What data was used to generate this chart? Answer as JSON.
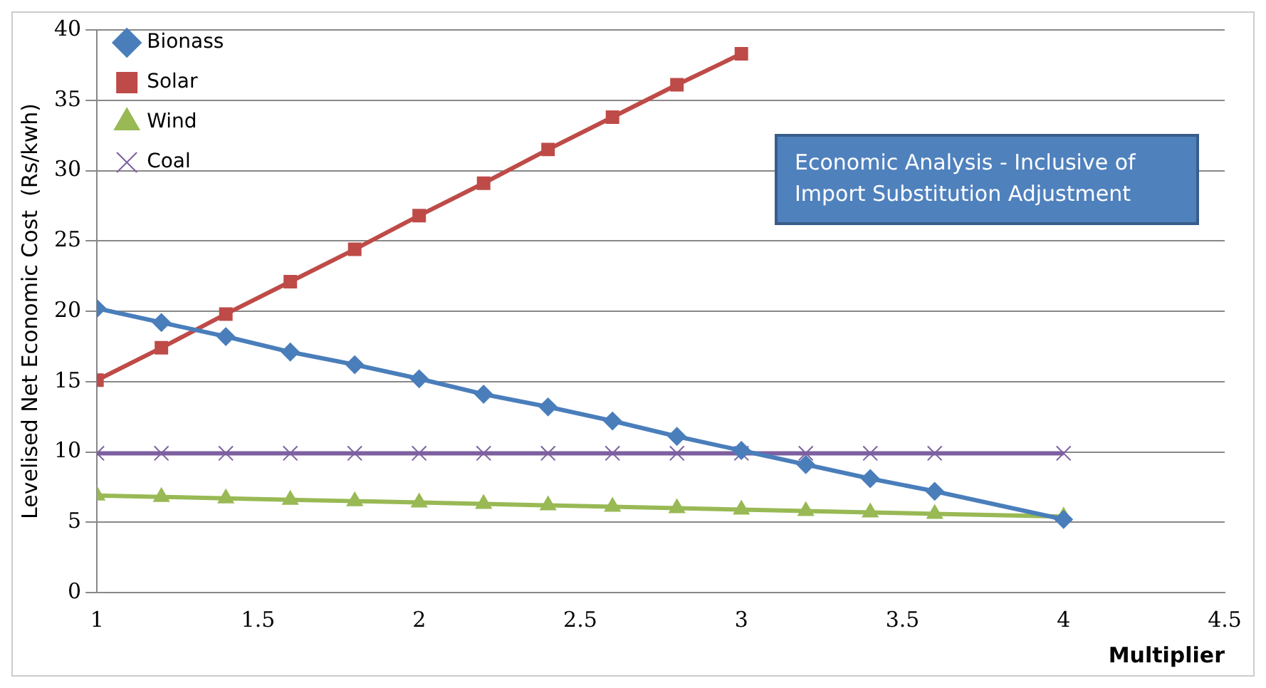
{
  "chart_data": {
    "type": "line",
    "xlabel": "Multiplier",
    "ylabel": "Levelised Net Economic Cost  (Rs/kwh)",
    "x": [
      1,
      1.2,
      1.4,
      1.6,
      1.8,
      2,
      2.2,
      2.4,
      2.6,
      2.8,
      3,
      3.2,
      3.4,
      3.6,
      4
    ],
    "series": [
      {
        "name": "Bionass",
        "color": "#4a7ebb",
        "marker": "diamond",
        "values": [
          20.2,
          19.2,
          18.2,
          17.1,
          16.2,
          15.2,
          14.1,
          13.2,
          12.2,
          11.1,
          10.1,
          9.1,
          8.1,
          7.2,
          5.2
        ]
      },
      {
        "name": "Solar",
        "color": "#be4b48",
        "marker": "square",
        "values": [
          15.1,
          17.4,
          19.8,
          22.1,
          24.4,
          26.8,
          29.1,
          31.5,
          33.8,
          36.1,
          38.3,
          null,
          null,
          null,
          null
        ]
      },
      {
        "name": "Wind",
        "color": "#98b954",
        "marker": "triangle",
        "values": [
          6.9,
          6.8,
          6.7,
          6.6,
          6.5,
          6.4,
          6.3,
          6.2,
          6.1,
          6.0,
          5.9,
          5.8,
          5.7,
          5.6,
          5.4
        ]
      },
      {
        "name": "Coal",
        "color": "#7d60a0",
        "marker": "cross",
        "values": [
          9.9,
          9.9,
          9.9,
          9.9,
          9.9,
          9.9,
          9.9,
          9.9,
          9.9,
          9.9,
          9.9,
          9.9,
          9.9,
          9.9,
          9.9
        ]
      }
    ],
    "xlim": [
      1,
      4.5
    ],
    "xticks": [
      1,
      1.5,
      2,
      2.5,
      3,
      3.5,
      4,
      4.5
    ],
    "ylim": [
      0,
      40
    ],
    "yticks": [
      0,
      5,
      10,
      15,
      20,
      25,
      30,
      35,
      40
    ],
    "grid": "y",
    "legend": "top left",
    "annotations": [
      "Economic Analysis - Inclusive of Import Substitution Adjustment"
    ]
  }
}
